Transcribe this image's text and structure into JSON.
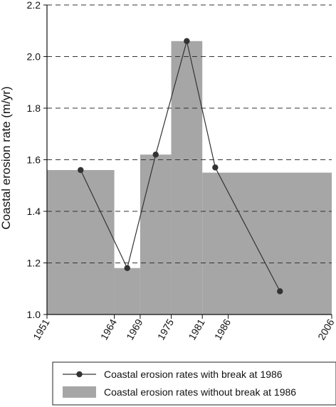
{
  "chart_data": {
    "type": "area",
    "ylabel": "Coastal erosion rate (m/yr)",
    "xlabel": "",
    "xlim": [
      1951,
      2006
    ],
    "ylim": [
      1.0,
      2.2
    ],
    "x_ticks": [
      "1951",
      "1964",
      "1969",
      "1975",
      "1981",
      "1986",
      "2006"
    ],
    "y_ticks": [
      "1.0",
      "1.2",
      "1.4",
      "1.6",
      "1.8",
      "2.0",
      "2.2"
    ],
    "grid": "horizontal-dashed",
    "legend_placement": "bottom",
    "series": [
      {
        "name": "Coastal erosion rates with break at 1986",
        "kind": "line",
        "color": "#333333",
        "points": [
          {
            "x": 1957.5,
            "y": 1.56
          },
          {
            "x": 1966.5,
            "y": 1.18
          },
          {
            "x": 1972,
            "y": 1.62
          },
          {
            "x": 1978,
            "y": 2.06
          },
          {
            "x": 1983.5,
            "y": 1.57
          },
          {
            "x": 1996,
            "y": 1.09
          }
        ]
      },
      {
        "name": "Coastal erosion rates without break at 1986",
        "kind": "step-area",
        "color": "#a6a6a6",
        "segments": [
          {
            "x0": 1951,
            "x1": 1964,
            "y": 1.56
          },
          {
            "x0": 1964,
            "x1": 1969,
            "y": 1.18
          },
          {
            "x0": 1969,
            "x1": 1975,
            "y": 1.62
          },
          {
            "x0": 1975,
            "x1": 1981,
            "y": 2.06
          },
          {
            "x0": 1981,
            "x1": 2006,
            "y": 1.55
          }
        ]
      }
    ]
  }
}
